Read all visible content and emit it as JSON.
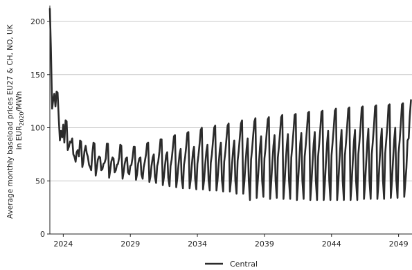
{
  "chart_data": {
    "type": "line",
    "title": "",
    "xlabel": "",
    "ylabel_line1": "Average monthly baseload prices EU27 & CH, NO, UK",
    "ylabel_line2_prefix": "in EUR",
    "ylabel_line2_sub": "2020",
    "ylabel_line2_suffix": "/MWh",
    "xlim": [
      2023,
      2050
    ],
    "ylim": [
      0,
      215
    ],
    "x_ticks": [
      2024,
      2029,
      2034,
      2039,
      2044,
      2049
    ],
    "y_ticks": [
      0,
      50,
      100,
      150,
      200
    ],
    "grid": {
      "y": true,
      "x": false
    },
    "legend": {
      "position": "bottom-center",
      "entries": [
        "Central"
      ]
    },
    "colors": {
      "line": "#2b2b2b",
      "grid": "#c8c8c8",
      "axis": "#222222"
    },
    "series": [
      {
        "name": "Central",
        "x": [
          2023.0,
          2023.08,
          2023.17,
          2023.25,
          2023.33,
          2023.42,
          2023.5,
          2023.58,
          2023.67,
          2023.75,
          2023.83,
          2023.92,
          2024.0,
          2024.08,
          2024.17,
          2024.25,
          2024.33,
          2024.42,
          2024.5,
          2024.58,
          2024.67,
          2024.75,
          2024.83,
          2024.92,
          2025.0,
          2025.08,
          2025.17,
          2025.25,
          2025.33,
          2025.42,
          2025.5,
          2025.58,
          2025.67,
          2025.75,
          2025.83,
          2025.92,
          2026.0,
          2026.08,
          2026.17,
          2026.25,
          2026.33,
          2026.42,
          2026.5,
          2026.58,
          2026.67,
          2026.75,
          2026.83,
          2026.92,
          2027.0,
          2027.08,
          2027.17,
          2027.25,
          2027.33,
          2027.42,
          2027.5,
          2027.58,
          2027.67,
          2027.75,
          2027.83,
          2027.92,
          2028.0,
          2028.08,
          2028.17,
          2028.25,
          2028.33,
          2028.42,
          2028.5,
          2028.58,
          2028.67,
          2028.75,
          2028.83,
          2028.92,
          2029.0,
          2029.08,
          2029.17,
          2029.25,
          2029.33,
          2029.42,
          2029.5,
          2029.58,
          2029.67,
          2029.75,
          2029.83,
          2029.92,
          2030.0,
          2030.08,
          2030.17,
          2030.25,
          2030.33,
          2030.42,
          2030.5,
          2030.58,
          2030.67,
          2030.75,
          2030.83,
          2030.92,
          2031.0,
          2031.08,
          2031.17,
          2031.25,
          2031.33,
          2031.42,
          2031.5,
          2031.58,
          2031.67,
          2031.75,
          2031.83,
          2031.92,
          2032.0,
          2032.08,
          2032.17,
          2032.25,
          2032.33,
          2032.42,
          2032.5,
          2032.58,
          2032.67,
          2032.75,
          2032.83,
          2032.92,
          2033.0,
          2033.08,
          2033.17,
          2033.25,
          2033.33,
          2033.42,
          2033.5,
          2033.58,
          2033.67,
          2033.75,
          2033.83,
          2033.92,
          2034.0,
          2034.08,
          2034.17,
          2034.25,
          2034.33,
          2034.42,
          2034.5,
          2034.58,
          2034.67,
          2034.75,
          2034.83,
          2034.92,
          2035.0,
          2035.08,
          2035.17,
          2035.25,
          2035.33,
          2035.42,
          2035.5,
          2035.58,
          2035.67,
          2035.75,
          2035.83,
          2035.92,
          2036.0,
          2036.08,
          2036.17,
          2036.25,
          2036.33,
          2036.42,
          2036.5,
          2036.58,
          2036.67,
          2036.75,
          2036.83,
          2036.92,
          2037.0,
          2037.08,
          2037.17,
          2037.25,
          2037.33,
          2037.42,
          2037.5,
          2037.58,
          2037.67,
          2037.75,
          2037.83,
          2037.92,
          2038.0,
          2038.08,
          2038.17,
          2038.25,
          2038.33,
          2038.42,
          2038.5,
          2038.58,
          2038.67,
          2038.75,
          2038.83,
          2038.92,
          2039.0,
          2039.08,
          2039.17,
          2039.25,
          2039.33,
          2039.42,
          2039.5,
          2039.58,
          2039.67,
          2039.75,
          2039.83,
          2039.92,
          2040.0,
          2040.08,
          2040.17,
          2040.25,
          2040.33,
          2040.42,
          2040.5,
          2040.58,
          2040.67,
          2040.75,
          2040.83,
          2040.92,
          2041.0,
          2041.08,
          2041.17,
          2041.25,
          2041.33,
          2041.42,
          2041.5,
          2041.58,
          2041.67,
          2041.75,
          2041.83,
          2041.92,
          2042.0,
          2042.08,
          2042.17,
          2042.25,
          2042.33,
          2042.42,
          2042.5,
          2042.58,
          2042.67,
          2042.75,
          2042.83,
          2042.92,
          2043.0,
          2043.08,
          2043.17,
          2043.25,
          2043.33,
          2043.42,
          2043.5,
          2043.58,
          2043.67,
          2043.75,
          2043.83,
          2043.92,
          2044.0,
          2044.08,
          2044.17,
          2044.25,
          2044.33,
          2044.42,
          2044.5,
          2044.58,
          2044.67,
          2044.75,
          2044.83,
          2044.92,
          2045.0,
          2045.08,
          2045.17,
          2045.25,
          2045.33,
          2045.42,
          2045.5,
          2045.58,
          2045.67,
          2045.75,
          2045.83,
          2045.92,
          2046.0,
          2046.08,
          2046.17,
          2046.25,
          2046.33,
          2046.42,
          2046.5,
          2046.58,
          2046.67,
          2046.75,
          2046.83,
          2046.92,
          2047.0,
          2047.08,
          2047.17,
          2047.25,
          2047.33,
          2047.42,
          2047.5,
          2047.58,
          2047.67,
          2047.75,
          2047.83,
          2047.92,
          2048.0,
          2048.08,
          2048.17,
          2048.25,
          2048.33,
          2048.42,
          2048.5,
          2048.58,
          2048.67,
          2048.75,
          2048.83,
          2048.92,
          2049.0,
          2049.08,
          2049.17,
          2049.25,
          2049.33,
          2049.42,
          2049.5,
          2049.58,
          2049.67,
          2049.75,
          2049.83,
          2049.92
        ],
        "values": [
          212,
          175,
          118,
          126,
          132,
          120,
          134,
          133,
          107,
          88,
          97,
          91,
          103,
          86,
          107,
          106,
          79,
          82,
          87,
          86,
          90,
          75,
          73,
          68,
          77,
          79,
          73,
          88,
          87,
          63,
          68,
          78,
          83,
          76,
          73,
          65,
          63,
          60,
          76,
          86,
          85,
          55,
          62,
          70,
          73,
          72,
          60,
          61,
          66,
          67,
          71,
          85,
          85,
          53,
          60,
          68,
          72,
          71,
          58,
          60,
          65,
          66,
          72,
          84,
          83,
          52,
          58,
          66,
          71,
          72,
          58,
          56,
          64,
          65,
          72,
          82,
          82,
          51,
          56,
          66,
          71,
          72,
          56,
          52,
          63,
          68,
          75,
          85,
          86,
          49,
          54,
          64,
          72,
          75,
          54,
          48,
          64,
          68,
          78,
          89,
          89,
          46,
          53,
          64,
          74,
          77,
          53,
          45,
          64,
          70,
          81,
          92,
          93,
          44,
          52,
          64,
          75,
          80,
          52,
          43,
          65,
          72,
          83,
          95,
          96,
          43,
          51,
          64,
          77,
          82,
          52,
          42,
          66,
          74,
          86,
          98,
          100,
          42,
          51,
          65,
          78,
          84,
          51,
          41,
          67,
          75,
          88,
          100,
          102,
          41,
          50,
          65,
          79,
          86,
          51,
          40,
          68,
          77,
          90,
          102,
          104,
          40,
          50,
          65,
          80,
          88,
          50,
          38,
          69,
          78,
          92,
          104,
          107,
          38,
          49,
          65,
          81,
          90,
          50,
          32,
          70,
          80,
          94,
          106,
          109,
          34,
          49,
          65,
          82,
          92,
          50,
          35,
          71,
          81,
          96,
          108,
          110,
          33,
          48,
          66,
          83,
          93,
          50,
          34,
          72,
          82,
          97,
          110,
          112,
          33,
          48,
          66,
          84,
          94,
          50,
          33,
          72,
          83,
          98,
          112,
          113,
          32,
          48,
          66,
          85,
          95,
          50,
          33,
          73,
          84,
          99,
          114,
          115,
          32,
          47,
          66,
          85,
          96,
          50,
          32,
          73,
          85,
          100,
          115,
          116,
          32,
          47,
          66,
          86,
          97,
          50,
          32,
          74,
          86,
          101,
          116,
          118,
          32,
          47,
          66,
          86,
          98,
          50,
          32,
          74,
          86,
          102,
          118,
          119,
          32,
          47,
          67,
          87,
          98,
          50,
          32,
          75,
          87,
          102,
          119,
          120,
          33,
          47,
          67,
          87,
          99,
          50,
          33,
          75,
          87,
          103,
          120,
          121,
          33,
          48,
          67,
          88,
          99,
          51,
          33,
          76,
          88,
          103,
          121,
          122,
          34,
          48,
          68,
          88,
          100,
          51,
          34,
          76,
          88,
          104,
          122,
          123,
          35,
          48,
          62,
          88,
          90,
          110,
          126
        ]
      }
    ]
  }
}
